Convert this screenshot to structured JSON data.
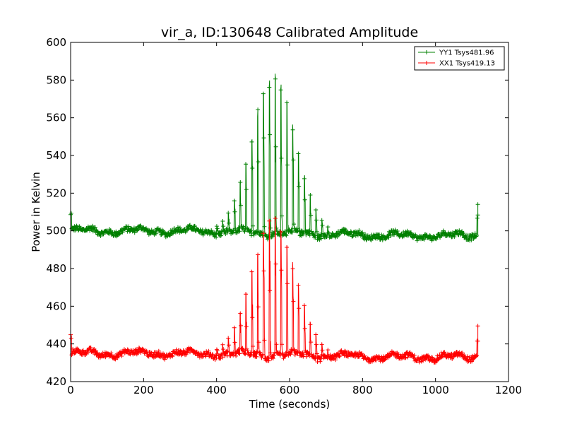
{
  "chart_data": {
    "type": "line",
    "title": "vir_a, ID:130648 Calibrated Amplitude",
    "xlabel": "Time (seconds)",
    "ylabel": "Power in Kelvin",
    "xlim": [
      0,
      1200
    ],
    "ylim": [
      420,
      600
    ],
    "xticks": [
      0,
      200,
      400,
      600,
      800,
      1000,
      1200
    ],
    "yticks": [
      420,
      440,
      460,
      480,
      500,
      520,
      540,
      560,
      580,
      600
    ],
    "grid": false,
    "legend_position": "top-right",
    "scan": {
      "start": 0,
      "end": 1116,
      "peak_center": 556,
      "spike_start": 400,
      "spike_end": 706,
      "spike_period": 16
    },
    "series": [
      {
        "name": "YY1 Tsys481.96",
        "color": "#008000",
        "baseline_early": 500,
        "baseline_late": 497.5,
        "peak": 585,
        "edge_start_value": 509,
        "edge_end_value": 507.5,
        "edge_end_high": 514
      },
      {
        "name": "XX1 Tsys419.13",
        "color": "#ff0000",
        "baseline_early": 435,
        "baseline_late": 433,
        "peak": 508,
        "edge_start_value": 444,
        "edge_end_value": 442,
        "edge_end_high": 449.5
      }
    ]
  }
}
